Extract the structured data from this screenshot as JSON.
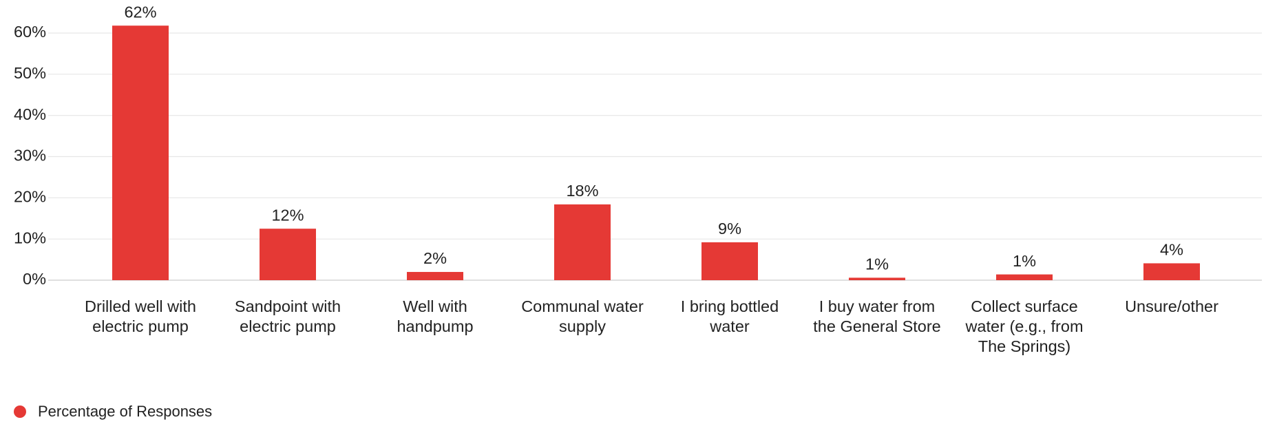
{
  "chart_data": {
    "type": "bar",
    "categories": [
      "Drilled well with electric pump",
      "Sandpoint with electric pump",
      "Well with handpump",
      "Communal water supply",
      "I bring bottled water",
      "I buy water from the General Store",
      "Collect surface water (e.g., from The Springs)",
      "Unsure/other"
    ],
    "series": [
      {
        "name": "Percentage of Responses",
        "color": "#e53935",
        "values": [
          61.8,
          12.5,
          2,
          18.4,
          9.2,
          0.6,
          1.4,
          4.1
        ],
        "value_labels": [
          "62%",
          "12%",
          "2%",
          "18%",
          "9%",
          "1%",
          "1%",
          "4%"
        ]
      }
    ],
    "ylim": [
      0,
      60
    ],
    "yticks": [
      {
        "value": 0,
        "label": "0%"
      },
      {
        "value": 10,
        "label": "10%"
      },
      {
        "value": 20,
        "label": "20%"
      },
      {
        "value": 30,
        "label": "30%"
      },
      {
        "value": 40,
        "label": "40%"
      },
      {
        "value": 50,
        "label": "50%"
      },
      {
        "value": 60,
        "label": "60%"
      }
    ],
    "grid": true,
    "legend": "bottom-left"
  }
}
